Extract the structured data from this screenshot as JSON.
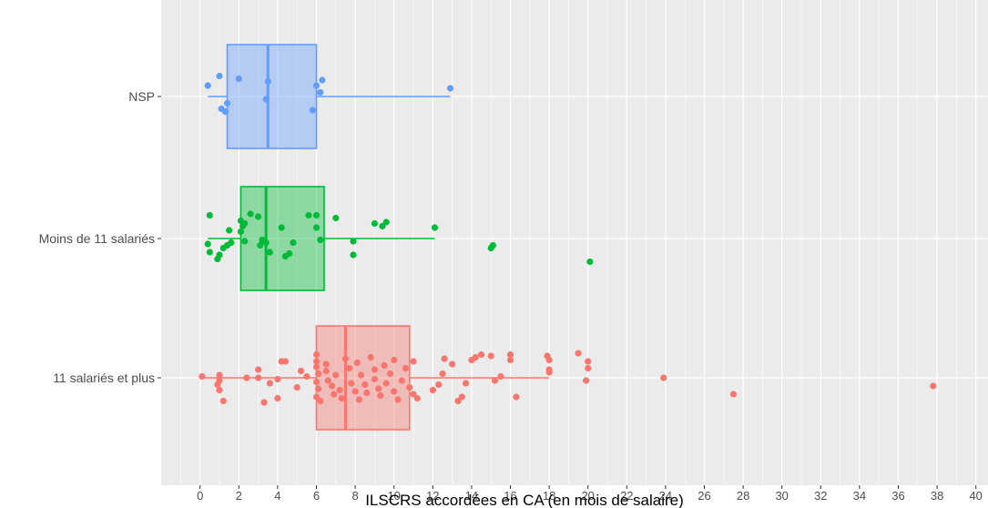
{
  "chart_data": {
    "type": "boxplot",
    "title": "",
    "xlabel": "ILSCRS accordées en CA (en mois de salaire)",
    "ylabel": "",
    "xlim": [
      -2,
      40.2
    ],
    "x_ticks": [
      "0",
      "2",
      "4",
      "6",
      "8",
      "10",
      "12",
      "14",
      "16",
      "18",
      "20",
      "22",
      "24",
      "26",
      "28",
      "30",
      "32",
      "34",
      "36",
      "38",
      "40"
    ],
    "grid": true,
    "orientation": "horizontal",
    "series": [
      {
        "name": "NSP",
        "color": "#619CFF",
        "box": {
          "whisker_low": 0.4,
          "q1": 1.4,
          "median": 3.5,
          "q3": 6.0,
          "whisker_high": 12.9
        },
        "points": [
          [
            0.4,
            -0.08
          ],
          [
            1.0,
            -0.15
          ],
          [
            1.1,
            0.09
          ],
          [
            1.3,
            0.11
          ],
          [
            1.4,
            0.05
          ],
          [
            2.0,
            -0.13
          ],
          [
            3.5,
            -0.11
          ],
          [
            3.4,
            0.02
          ],
          [
            5.8,
            0.1
          ],
          [
            6.0,
            -0.08
          ],
          [
            6.2,
            -0.03
          ],
          [
            6.3,
            -0.12
          ],
          [
            12.9,
            -0.06
          ]
        ]
      },
      {
        "name": "Moins de 11 salariés",
        "color": "#00BA38",
        "box": {
          "whisker_low": 0.4,
          "q1": 2.1,
          "median": 3.4,
          "q3": 6.4,
          "whisker_high": 12.1
        },
        "points": [
          [
            0.5,
            -0.17
          ],
          [
            0.4,
            0.04
          ],
          [
            0.5,
            0.1
          ],
          [
            0.9,
            0.15
          ],
          [
            1.0,
            0.12
          ],
          [
            1.2,
            0.07
          ],
          [
            1.4,
            0.05
          ],
          [
            1.5,
            -0.06
          ],
          [
            1.6,
            0.03
          ],
          [
            2.1,
            -0.13
          ],
          [
            2.2,
            -0.09
          ],
          [
            2.3,
            -0.11
          ],
          [
            2.1,
            -0.05
          ],
          [
            2.3,
            0.02
          ],
          [
            2.6,
            -0.18
          ],
          [
            3.0,
            -0.16
          ],
          [
            3.1,
            0.05
          ],
          [
            3.2,
            0.01
          ],
          [
            3.4,
            0.03
          ],
          [
            3.6,
            0.1
          ],
          [
            4.2,
            -0.08
          ],
          [
            4.4,
            0.13
          ],
          [
            4.6,
            0.11
          ],
          [
            4.8,
            0.03
          ],
          [
            5.6,
            -0.17
          ],
          [
            6.0,
            -0.17
          ],
          [
            6.0,
            -0.08
          ],
          [
            6.2,
            0.01
          ],
          [
            7.0,
            -0.15
          ],
          [
            7.9,
            0.02
          ],
          [
            7.9,
            0.12
          ],
          [
            9.0,
            -0.11
          ],
          [
            9.4,
            -0.09
          ],
          [
            9.6,
            -0.12
          ],
          [
            12.1,
            -0.08
          ],
          [
            15.0,
            0.07
          ],
          [
            15.1,
            0.05
          ],
          [
            20.1,
            0.17
          ]
        ]
      },
      {
        "name": "11 salariés et plus",
        "color": "#F8766D",
        "box": {
          "whisker_low": 0.0,
          "q1": 6.0,
          "median": 7.5,
          "q3": 10.8,
          "whisker_high": 18.0
        },
        "points": [
          [
            0.1,
            -0.01
          ],
          [
            1.0,
            -0.02
          ],
          [
            1.0,
            0.02
          ],
          [
            0.9,
            0.05
          ],
          [
            1.0,
            0.09
          ],
          [
            1.2,
            0.17
          ],
          [
            2.4,
            0.0
          ],
          [
            3.0,
            -0.06
          ],
          [
            3.0,
            0.0
          ],
          [
            3.3,
            0.18
          ],
          [
            3.6,
            0.04
          ],
          [
            4.0,
            0.15
          ],
          [
            4.0,
            0.01
          ],
          [
            4.2,
            -0.12
          ],
          [
            4.4,
            -0.12
          ],
          [
            5.0,
            0.07
          ],
          [
            5.2,
            -0.05
          ],
          [
            5.5,
            -0.01
          ],
          [
            6.0,
            -0.17
          ],
          [
            6.0,
            -0.12
          ],
          [
            6.0,
            -0.08
          ],
          [
            6.1,
            -0.03
          ],
          [
            6.0,
            0.03
          ],
          [
            6.1,
            0.08
          ],
          [
            6.0,
            0.14
          ],
          [
            6.2,
            0.17
          ],
          [
            6.5,
            -0.1
          ],
          [
            6.5,
            -0.05
          ],
          [
            6.6,
            0.02
          ],
          [
            6.8,
            0.06
          ],
          [
            6.9,
            0.12
          ],
          [
            7.0,
            -0.02
          ],
          [
            7.2,
            0.09
          ],
          [
            7.3,
            0.15
          ],
          [
            7.5,
            -0.14
          ],
          [
            7.7,
            -0.07
          ],
          [
            7.8,
            0.04
          ],
          [
            8.0,
            0.1
          ],
          [
            8.1,
            -0.11
          ],
          [
            8.2,
            0.16
          ],
          [
            8.3,
            -0.02
          ],
          [
            8.5,
            0.05
          ],
          [
            8.6,
            0.11
          ],
          [
            8.8,
            -0.15
          ],
          [
            9.0,
            -0.06
          ],
          [
            9.0,
            0.01
          ],
          [
            9.2,
            0.08
          ],
          [
            9.3,
            0.13
          ],
          [
            9.5,
            -0.09
          ],
          [
            9.6,
            0.04
          ],
          [
            9.8,
            -0.03
          ],
          [
            10.0,
            -0.13
          ],
          [
            10.0,
            0.1
          ],
          [
            10.2,
            0.16
          ],
          [
            10.4,
            0.02
          ],
          [
            10.6,
            -0.07
          ],
          [
            10.8,
            0.07
          ],
          [
            11.0,
            -0.12
          ],
          [
            11.0,
            0.12
          ],
          [
            11.2,
            0.15
          ],
          [
            12.0,
            0.09
          ],
          [
            12.3,
            0.05
          ],
          [
            12.5,
            -0.03
          ],
          [
            12.6,
            -0.14
          ],
          [
            13.0,
            -0.1
          ],
          [
            13.3,
            0.17
          ],
          [
            13.5,
            0.14
          ],
          [
            13.7,
            0.04
          ],
          [
            14.0,
            -0.13
          ],
          [
            14.2,
            -0.15
          ],
          [
            14.5,
            -0.17
          ],
          [
            15.0,
            -0.16
          ],
          [
            15.2,
            0.02
          ],
          [
            15.5,
            -0.01
          ],
          [
            16.0,
            -0.17
          ],
          [
            16.0,
            -0.13
          ],
          [
            16.3,
            0.14
          ],
          [
            17.9,
            -0.16
          ],
          [
            18.0,
            -0.13
          ],
          [
            18.0,
            -0.06
          ],
          [
            18.0,
            -0.04
          ],
          [
            19.5,
            -0.18
          ],
          [
            20.0,
            -0.12
          ],
          [
            20.0,
            -0.07
          ],
          [
            19.9,
            0.02
          ],
          [
            23.9,
            0.0
          ],
          [
            27.5,
            0.12
          ],
          [
            37.8,
            0.06
          ]
        ]
      }
    ]
  }
}
